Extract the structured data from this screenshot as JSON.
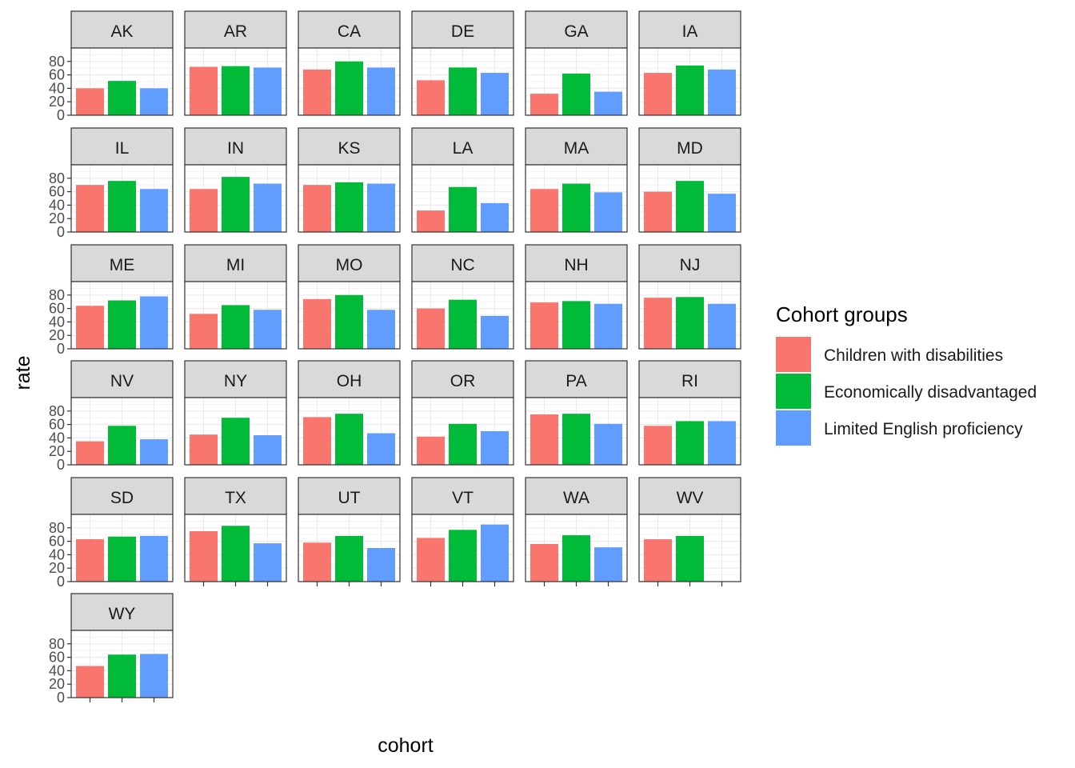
{
  "chart_data": {
    "type": "bar",
    "facet_by": "state",
    "xlabel": "cohort",
    "ylabel": "rate",
    "ylim": [
      0,
      100
    ],
    "yticks": [
      0,
      20,
      40,
      60,
      80
    ],
    "grid": true,
    "legend": {
      "title": "Cohort groups",
      "position": "right",
      "entries": [
        {
          "name": "Children with disabilities",
          "color": "#F8766D"
        },
        {
          "name": "Economically disadvantaged",
          "color": "#00BA38"
        },
        {
          "name": "Limited English proficiency",
          "color": "#619CFF"
        }
      ]
    },
    "categories": [
      "Children with disabilities",
      "Economically disadvantaged",
      "Limited English proficiency"
    ],
    "facets": [
      {
        "label": "AK",
        "values": [
          40,
          51,
          40
        ]
      },
      {
        "label": "AR",
        "values": [
          72,
          73,
          71
        ]
      },
      {
        "label": "CA",
        "values": [
          68,
          80,
          71
        ]
      },
      {
        "label": "DE",
        "values": [
          52,
          71,
          63
        ]
      },
      {
        "label": "GA",
        "values": [
          32,
          62,
          35
        ]
      },
      {
        "label": "IA",
        "values": [
          63,
          74,
          68
        ]
      },
      {
        "label": "IL",
        "values": [
          70,
          76,
          64
        ]
      },
      {
        "label": "IN",
        "values": [
          64,
          82,
          72
        ]
      },
      {
        "label": "KS",
        "values": [
          70,
          74,
          72
        ]
      },
      {
        "label": "LA",
        "values": [
          32,
          67,
          43
        ]
      },
      {
        "label": "MA",
        "values": [
          64,
          72,
          59
        ]
      },
      {
        "label": "MD",
        "values": [
          60,
          76,
          57
        ]
      },
      {
        "label": "ME",
        "values": [
          64,
          72,
          78
        ]
      },
      {
        "label": "MI",
        "values": [
          52,
          65,
          58
        ]
      },
      {
        "label": "MO",
        "values": [
          74,
          80,
          58
        ]
      },
      {
        "label": "NC",
        "values": [
          60,
          73,
          49
        ]
      },
      {
        "label": "NH",
        "values": [
          69,
          71,
          67
        ]
      },
      {
        "label": "NJ",
        "values": [
          76,
          77,
          67
        ]
      },
      {
        "label": "NV",
        "values": [
          35,
          58,
          38
        ]
      },
      {
        "label": "NY",
        "values": [
          45,
          70,
          44
        ]
      },
      {
        "label": "OH",
        "values": [
          71,
          76,
          47
        ]
      },
      {
        "label": "OR",
        "values": [
          42,
          61,
          50
        ]
      },
      {
        "label": "PA",
        "values": [
          75,
          76,
          61
        ]
      },
      {
        "label": "RI",
        "values": [
          58,
          65,
          65
        ]
      },
      {
        "label": "SD",
        "values": [
          63,
          67,
          68
        ]
      },
      {
        "label": "TX",
        "values": [
          75,
          83,
          57
        ]
      },
      {
        "label": "UT",
        "values": [
          58,
          68,
          50
        ]
      },
      {
        "label": "VT",
        "values": [
          65,
          77,
          85
        ]
      },
      {
        "label": "WA",
        "values": [
          56,
          69,
          51
        ]
      },
      {
        "label": "WV",
        "values": [
          63,
          68,
          null
        ]
      },
      {
        "label": "WY",
        "values": [
          47,
          64,
          65
        ]
      }
    ]
  }
}
